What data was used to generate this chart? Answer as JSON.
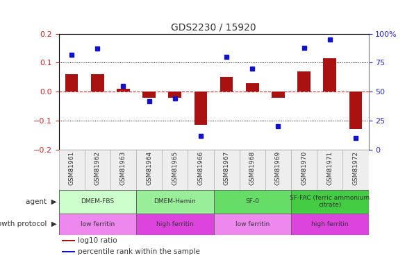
{
  "title": "GDS2230 / 15920",
  "samples": [
    "GSM81961",
    "GSM81962",
    "GSM81963",
    "GSM81964",
    "GSM81965",
    "GSM81966",
    "GSM81967",
    "GSM81968",
    "GSM81969",
    "GSM81970",
    "GSM81971",
    "GSM81972"
  ],
  "log10_ratio": [
    0.06,
    0.06,
    0.01,
    -0.02,
    -0.02,
    -0.115,
    0.05,
    0.03,
    -0.02,
    0.07,
    0.115,
    -0.13
  ],
  "percentile_rank": [
    82,
    87,
    55,
    42,
    44,
    12,
    80,
    70,
    20,
    88,
    95,
    10
  ],
  "ylim_left": [
    -0.2,
    0.2
  ],
  "ylim_right": [
    0,
    100
  ],
  "bar_color": "#aa1111",
  "dot_color": "#1111cc",
  "agent_groups": [
    {
      "label": "DMEM-FBS",
      "start": 0,
      "end": 3,
      "color": "#ccffcc"
    },
    {
      "label": "DMEM-Hemin",
      "start": 3,
      "end": 6,
      "color": "#99ee99"
    },
    {
      "label": "SF-0",
      "start": 6,
      "end": 9,
      "color": "#66dd66"
    },
    {
      "label": "SF-FAC (ferric ammonium\ncitrate)",
      "start": 9,
      "end": 12,
      "color": "#44cc44"
    }
  ],
  "protocol_groups": [
    {
      "label": "low ferritin",
      "start": 0,
      "end": 3,
      "color": "#ee88ee"
    },
    {
      "label": "high ferritin",
      "start": 3,
      "end": 6,
      "color": "#dd44dd"
    },
    {
      "label": "low ferritin",
      "start": 6,
      "end": 9,
      "color": "#ee88ee"
    },
    {
      "label": "high ferritin",
      "start": 9,
      "end": 12,
      "color": "#dd44dd"
    }
  ],
  "legend_bar_label": "log10 ratio",
  "legend_dot_label": "percentile rank within the sample",
  "title_color": "#333333",
  "left_axis_color": "#cc2222",
  "right_axis_color": "#2222cc",
  "hline_color": "#cc2222",
  "dotline_color": "#000000",
  "right_ytick_labels": [
    "0",
    "25",
    "50",
    "75",
    "100%"
  ]
}
